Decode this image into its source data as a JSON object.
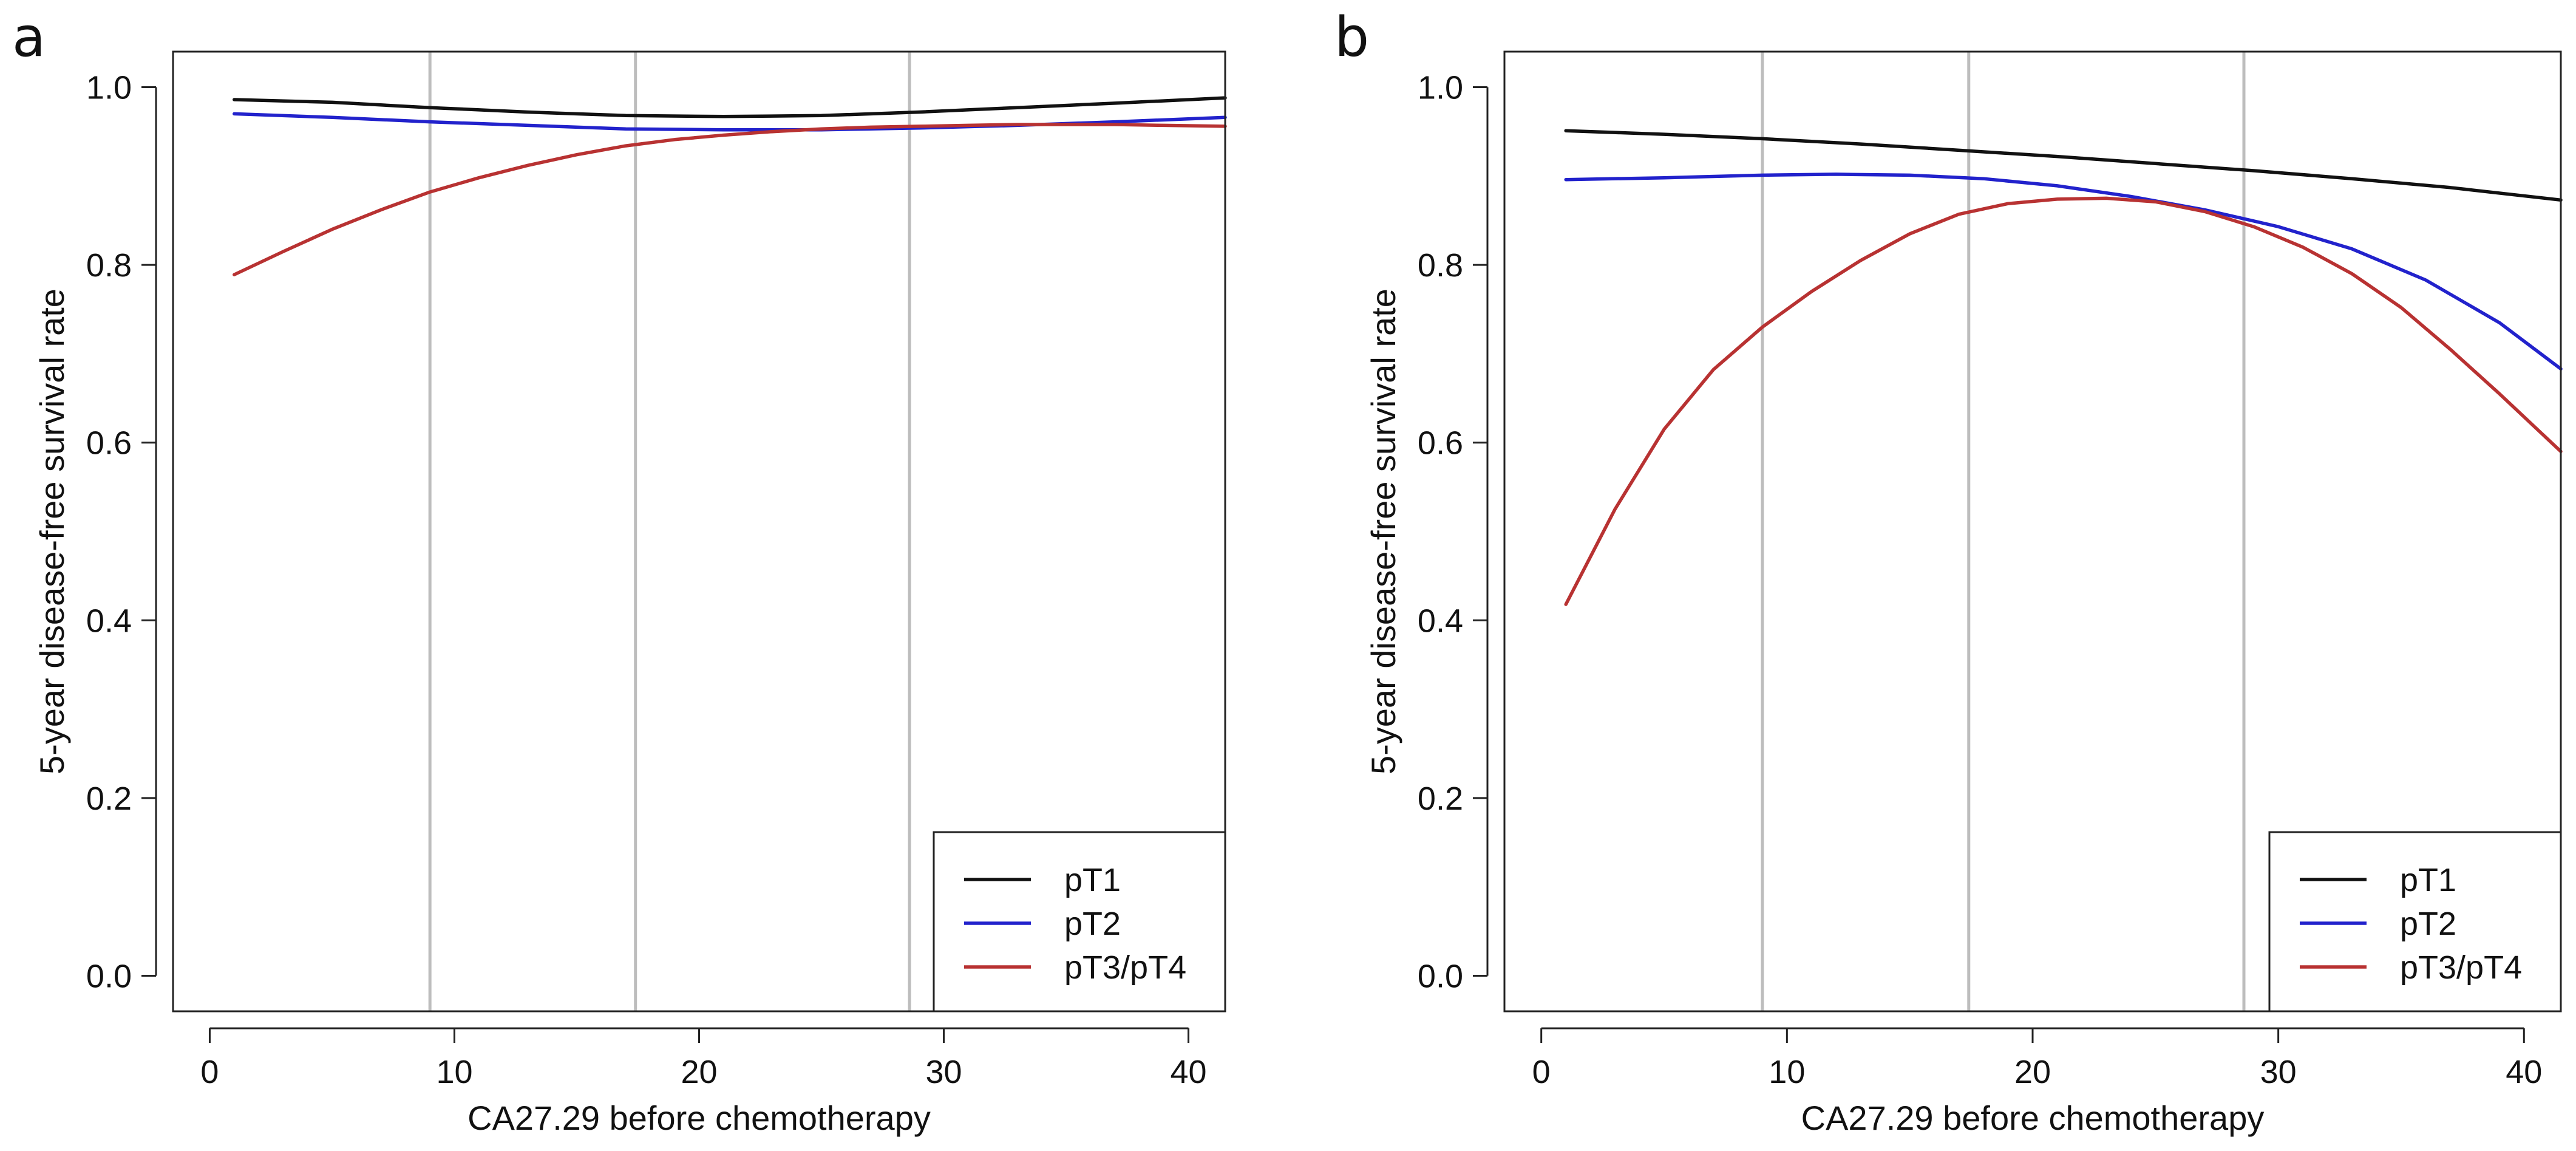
{
  "figure": {
    "panel_letters": [
      "a",
      "b"
    ]
  },
  "colors": {
    "pT1": "#111111",
    "pT2": "#2222cc",
    "pT3_pT4": "#b83232",
    "refline": "#bdbdbd",
    "frame": "#222222"
  },
  "chart_data": [
    {
      "panel": "a",
      "type": "line",
      "xlabel": "CA27.29 before chemotherapy",
      "ylabel": "5-year disease-free survival rate",
      "xlim": [
        -1.5,
        41.5
      ],
      "ylim": [
        -0.04,
        1.04
      ],
      "xticks": [
        0,
        10,
        20,
        30,
        40
      ],
      "yticks": [
        0.0,
        0.2,
        0.4,
        0.6,
        0.8,
        1.0
      ],
      "tick_labels_x": [
        "0",
        "10",
        "20",
        "30",
        "40"
      ],
      "tick_labels_y": [
        "0.0",
        "0.2",
        "0.4",
        "0.6",
        "0.8",
        "1.0"
      ],
      "reference_lines_x": [
        9,
        17.4,
        28.6
      ],
      "legend_position": "bottom-right",
      "series": [
        {
          "name": "pT1",
          "color_key": "pT1",
          "x": [
            1,
            5,
            9,
            13,
            17,
            21,
            25,
            29,
            33,
            37,
            41.5
          ],
          "y": [
            0.986,
            0.983,
            0.977,
            0.972,
            0.968,
            0.967,
            0.968,
            0.972,
            0.977,
            0.982,
            0.988
          ]
        },
        {
          "name": "pT2",
          "color_key": "pT2",
          "x": [
            1,
            5,
            9,
            13,
            17,
            21,
            25,
            29,
            33,
            37,
            41.5
          ],
          "y": [
            0.97,
            0.966,
            0.961,
            0.957,
            0.953,
            0.952,
            0.952,
            0.954,
            0.957,
            0.961,
            0.966
          ]
        },
        {
          "name": "pT3/pT4",
          "color_key": "pT3_pT4",
          "x": [
            1,
            3,
            5,
            7,
            9,
            11,
            13,
            15,
            17,
            19,
            21,
            23,
            25,
            27,
            29,
            31,
            33,
            35,
            37,
            39,
            41.5
          ],
          "y": [
            0.789,
            0.815,
            0.84,
            0.862,
            0.882,
            0.898,
            0.912,
            0.924,
            0.934,
            0.941,
            0.946,
            0.95,
            0.953,
            0.955,
            0.956,
            0.957,
            0.958,
            0.958,
            0.958,
            0.957,
            0.956
          ]
        }
      ]
    },
    {
      "panel": "b",
      "type": "line",
      "xlabel": "CA27.29 before chemotherapy",
      "ylabel": "5-year disease-free survival rate",
      "xlim": [
        -1.5,
        41.5
      ],
      "ylim": [
        -0.04,
        1.04
      ],
      "xticks": [
        0,
        10,
        20,
        30,
        40
      ],
      "yticks": [
        0.0,
        0.2,
        0.4,
        0.6,
        0.8,
        1.0
      ],
      "tick_labels_x": [
        "0",
        "10",
        "20",
        "30",
        "40"
      ],
      "tick_labels_y": [
        "0.0",
        "0.2",
        "0.4",
        "0.6",
        "0.8",
        "1.0"
      ],
      "reference_lines_x": [
        9,
        17.4,
        28.6
      ],
      "legend_position": "bottom-right",
      "series": [
        {
          "name": "pT1",
          "color_key": "pT1",
          "x": [
            1,
            5,
            9,
            13,
            17,
            21,
            25,
            29,
            33,
            37,
            41.5
          ],
          "y": [
            0.951,
            0.947,
            0.942,
            0.936,
            0.929,
            0.922,
            0.914,
            0.906,
            0.897,
            0.887,
            0.873
          ]
        },
        {
          "name": "pT2",
          "color_key": "pT2",
          "x": [
            1,
            5,
            9,
            12,
            15,
            18,
            21,
            24,
            27,
            30,
            33,
            36,
            39,
            41.5
          ],
          "y": [
            0.896,
            0.898,
            0.901,
            0.902,
            0.901,
            0.897,
            0.889,
            0.877,
            0.862,
            0.843,
            0.818,
            0.783,
            0.735,
            0.683
          ]
        },
        {
          "name": "pT3/pT4",
          "color_key": "pT3_pT4",
          "x": [
            1,
            3,
            5,
            7,
            9,
            11,
            13,
            15,
            17,
            19,
            21,
            23,
            25,
            27,
            29,
            31,
            33,
            35,
            37,
            39,
            41.5
          ],
          "y": [
            0.418,
            0.525,
            0.615,
            0.682,
            0.73,
            0.77,
            0.805,
            0.835,
            0.857,
            0.869,
            0.874,
            0.875,
            0.871,
            0.86,
            0.843,
            0.82,
            0.79,
            0.752,
            0.705,
            0.655,
            0.59
          ]
        }
      ]
    }
  ]
}
